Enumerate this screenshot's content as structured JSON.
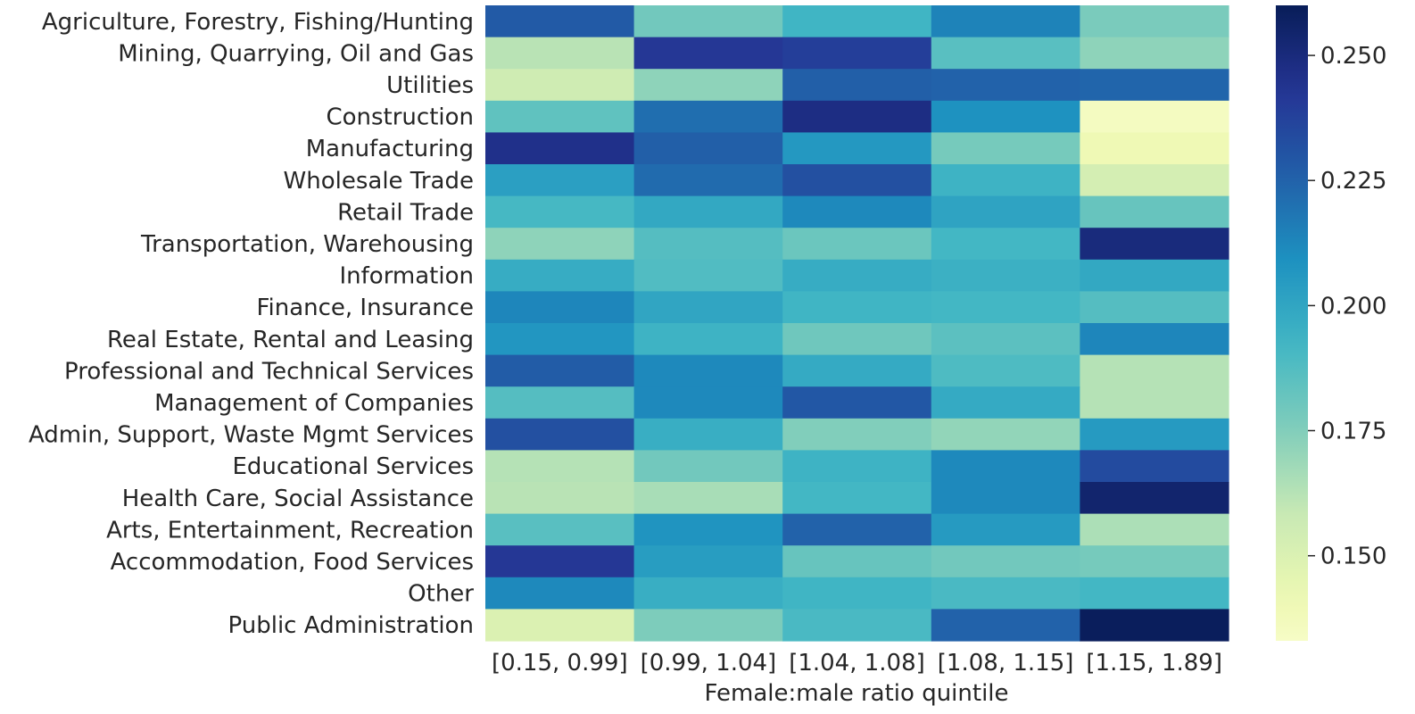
{
  "chart_data": {
    "type": "heatmap",
    "xlabel": "Female:male ratio quintile",
    "ylabel": "",
    "columns": [
      "[0.15, 0.99]",
      "[0.99, 1.04]",
      "[1.04, 1.08]",
      "[1.08, 1.15]",
      "[1.15, 1.89]"
    ],
    "rows": [
      "Agriculture, Forestry, Fishing/Hunting",
      "Mining, Quarrying, Oil and Gas",
      "Utilities",
      "Construction",
      "Manufacturing",
      "Wholesale Trade",
      "Retail Trade",
      "Transportation, Warehousing",
      "Information",
      "Finance, Insurance",
      "Real Estate, Rental and Leasing",
      "Professional and Technical Services",
      "Management of Companies",
      "Admin, Support, Waste Mgmt Services",
      "Educational Services",
      "Health Care, Social Assistance",
      "Arts, Entertainment, Recreation",
      "Accommodation, Food Services",
      "Other",
      "Public Administration"
    ],
    "values": [
      [
        0.228,
        0.179,
        0.193,
        0.214,
        0.177
      ],
      [
        0.162,
        0.242,
        0.239,
        0.186,
        0.172
      ],
      [
        0.155,
        0.172,
        0.226,
        0.225,
        0.224
      ],
      [
        0.184,
        0.221,
        0.248,
        0.209,
        0.135
      ],
      [
        0.246,
        0.226,
        0.206,
        0.178,
        0.14
      ],
      [
        0.203,
        0.222,
        0.232,
        0.194,
        0.153
      ],
      [
        0.191,
        0.199,
        0.212,
        0.201,
        0.182
      ],
      [
        0.172,
        0.187,
        0.181,
        0.192,
        0.25
      ],
      [
        0.197,
        0.188,
        0.197,
        0.195,
        0.199
      ],
      [
        0.213,
        0.2,
        0.193,
        0.192,
        0.187
      ],
      [
        0.207,
        0.194,
        0.18,
        0.185,
        0.213
      ],
      [
        0.227,
        0.212,
        0.198,
        0.189,
        0.163
      ],
      [
        0.187,
        0.212,
        0.229,
        0.198,
        0.163
      ],
      [
        0.232,
        0.196,
        0.175,
        0.171,
        0.205
      ],
      [
        0.163,
        0.179,
        0.194,
        0.212,
        0.234
      ],
      [
        0.162,
        0.166,
        0.192,
        0.212,
        0.254
      ],
      [
        0.186,
        0.208,
        0.225,
        0.205,
        0.165
      ],
      [
        0.242,
        0.204,
        0.182,
        0.179,
        0.178
      ],
      [
        0.212,
        0.196,
        0.193,
        0.19,
        0.192
      ],
      [
        0.15,
        0.176,
        0.19,
        0.225,
        0.259
      ]
    ],
    "colorbar": {
      "colormap": "YlGnBu",
      "min": 0.133,
      "max": 0.26,
      "ticks": [
        0.15,
        0.175,
        0.2,
        0.225,
        0.25
      ],
      "tick_labels": [
        "0.150",
        "0.175",
        "0.200",
        "0.225",
        "0.250"
      ]
    }
  }
}
